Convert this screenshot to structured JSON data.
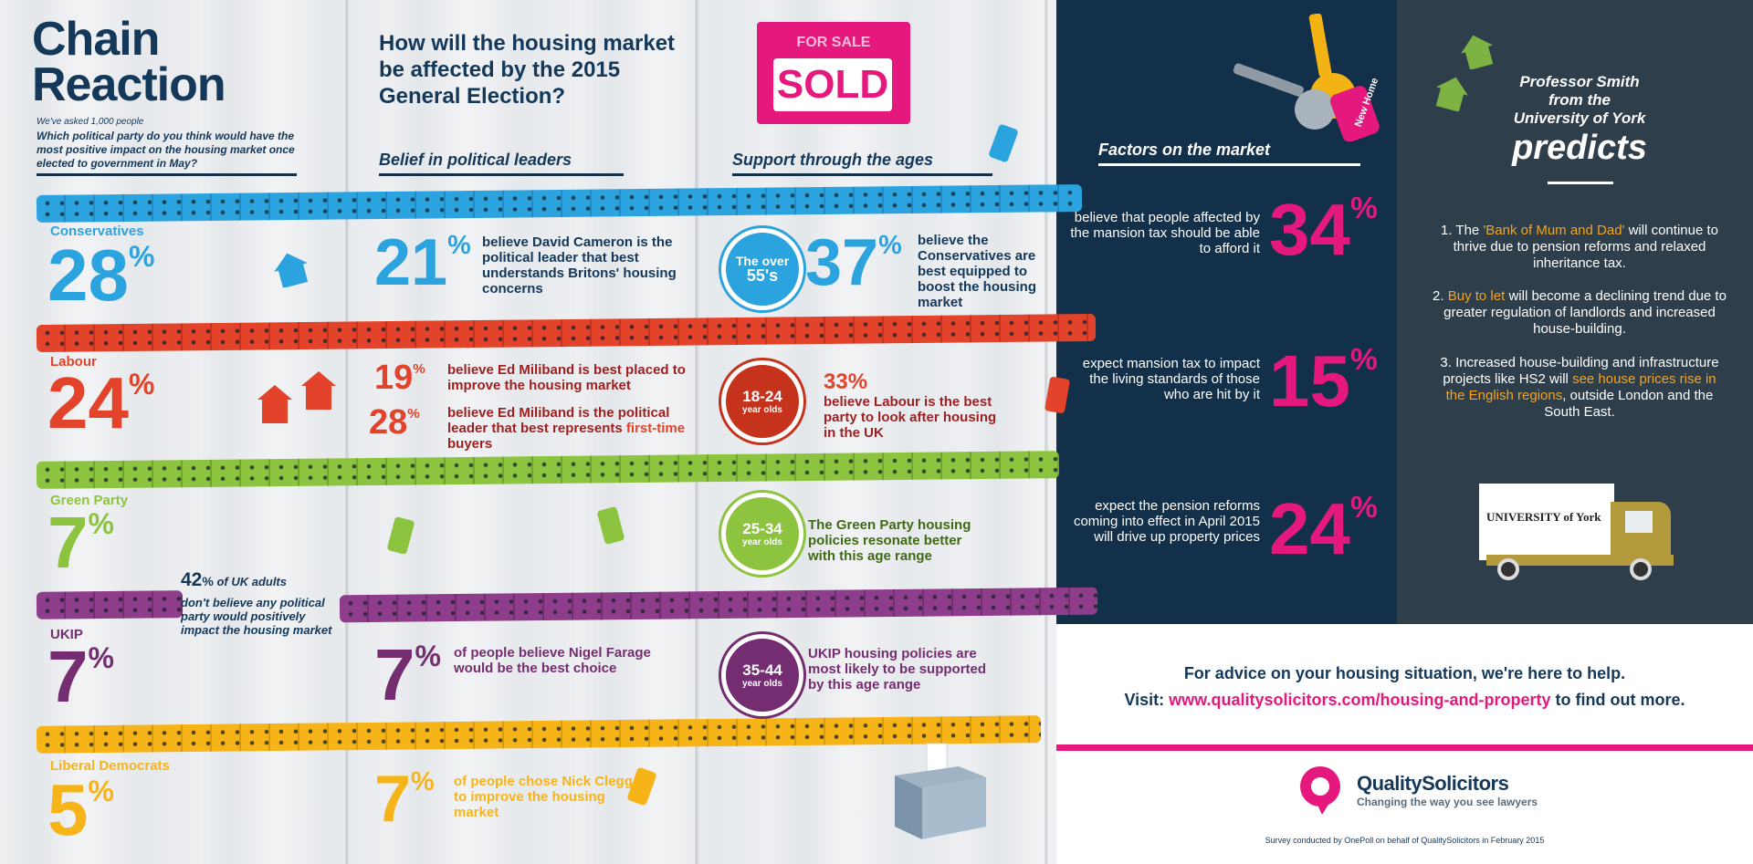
{
  "title": {
    "line1": "Chain",
    "line2": "Reaction"
  },
  "survey": {
    "intro": "We've asked 1,000 people",
    "question": "Which political party do you think would have the most positive impact on the housing market once elected to government in May?"
  },
  "headline": "How will the housing market be affected by the 2015 General Election?",
  "sign": {
    "top": "FOR SALE",
    "main": "SOLD"
  },
  "keytag": "New Home",
  "sections": {
    "belief": "Belief in political leaders",
    "support": "Support through the ages",
    "factors": "Factors on the market"
  },
  "parties": [
    {
      "name": "Conservatives",
      "pct": "28",
      "color": "#2ba3df"
    },
    {
      "name": "Labour",
      "pct": "24",
      "color": "#e2432a"
    },
    {
      "name": "Green Party",
      "pct": "7",
      "color": "#8cc43f"
    },
    {
      "name": "UKIP",
      "pct": "7",
      "color": "#742d71"
    },
    {
      "name": "Liberal Democrats",
      "pct": "5",
      "color": "#f7b418"
    }
  ],
  "uk_adults": {
    "pct": "42",
    "text1": "of UK adults",
    "text2": "don't believe any political party would positively impact the housing market"
  },
  "beliefs": {
    "cameron": {
      "pct": "21",
      "text": "believe David Cameron is the political leader that best understands Britons' housing concerns"
    },
    "miliband1": {
      "pct": "19",
      "text": "believe Ed Miliband is best placed to improve the housing market"
    },
    "miliband2": {
      "pct": "28",
      "text": "believe Ed Miliband is the political leader that best represents",
      "highlight": "first-time",
      "tail": "buyers"
    },
    "farage": {
      "pct": "7",
      "text": "of people believe Nigel Farage would be the best choice"
    },
    "clegg": {
      "pct": "7",
      "text": "of people chose Nick Clegg to improve the housing market"
    }
  },
  "ages": {
    "over55": {
      "badge1": "The over",
      "badge2": "55's",
      "pct": "37",
      "text": "believe the Conservatives are best equipped to boost the housing market"
    },
    "a1824": {
      "badge1": "18-24",
      "badge2": "year olds",
      "pct": "33",
      "text": "believe Labour is the best party to look after housing in the UK"
    },
    "a2534": {
      "badge1": "25-34",
      "badge2": "year olds",
      "text": "The Green Party housing policies resonate better with this age range"
    },
    "a3544": {
      "badge1": "35-44",
      "badge2": "year olds",
      "text": "UKIP housing policies are most likely to be supported by this age range"
    }
  },
  "factors": [
    {
      "text": "believe that people affected by the mansion tax should be able to afford it",
      "pct": "34"
    },
    {
      "text": "expect mansion tax to impact the living standards of those who are hit by it",
      "pct": "15"
    },
    {
      "text": "expect the pension reforms coming into effect in April 2015 will drive up property prices",
      "pct": "24"
    }
  ],
  "professor": {
    "line1": "Professor Smith",
    "line2": "from the",
    "line3": "University of York",
    "big": "predicts"
  },
  "predictions": {
    "p1": {
      "num": "1. The",
      "hl": "'Bank of Mum and Dad'",
      "rest": "will continue to thrive due to pension reforms and relaxed inheritance tax."
    },
    "p2": {
      "num": "2.",
      "hl": "Buy to let",
      "rest": "will become a declining trend due to greater regulation of landlords and increased house-building."
    },
    "p3": {
      "pre": "3. Increased house-building and infrastructure projects like HS2 will",
      "hl": "see house prices rise in the English regions",
      "rest": ", outside London and the South East."
    }
  },
  "van": {
    "label": "UNIVERSITY of York"
  },
  "footer": {
    "advice": "For advice on your housing situation, we're here to help.",
    "visit": "Visit:",
    "url": "www.qualitysolicitors.com/housing-and-property",
    "after": "to find out more.",
    "brand": "QualitySolicitors",
    "tagline": "Changing the way you see lawyers",
    "survey_note": "Survey conducted by OnePoll on behalf of QualitySolicitors in February 2015"
  },
  "colors": {
    "navy": "#123049",
    "pink": "#e5197d",
    "orange": "#f6a41b",
    "blue": "#2ba3df",
    "red": "#e2432a",
    "green": "#8cc43f",
    "purple": "#742d71",
    "yellow": "#f7b418"
  }
}
